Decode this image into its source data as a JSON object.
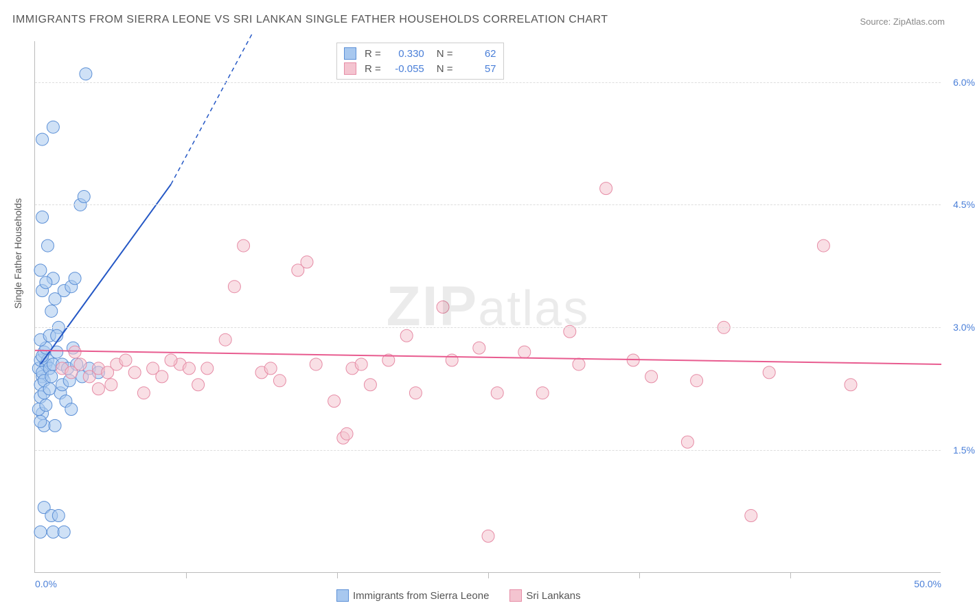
{
  "title": "IMMIGRANTS FROM SIERRA LEONE VS SRI LANKAN SINGLE FATHER HOUSEHOLDS CORRELATION CHART",
  "source_label": "Source: ZipAtlas.com",
  "ylabel": "Single Father Households",
  "watermark": "ZIPatlas",
  "chart": {
    "type": "scatter",
    "background_color": "#ffffff",
    "grid_color": "#dddddd",
    "axis_color": "#bbbbbb",
    "tick_color": "#4a7fd8",
    "label_fontsize": 14,
    "title_fontsize": 16,
    "xlim": [
      0,
      50
    ],
    "ylim": [
      0,
      6.5
    ],
    "x_ticks": [
      {
        "pos": 0.0,
        "label": "0.0%"
      },
      {
        "pos": 50.0,
        "label": "50.0%"
      }
    ],
    "x_minor_ticks": [
      8.33,
      16.67,
      25.0,
      33.33,
      41.67
    ],
    "y_ticks": [
      {
        "pos": 1.5,
        "label": "1.5%"
      },
      {
        "pos": 3.0,
        "label": "3.0%"
      },
      {
        "pos": 4.5,
        "label": "4.5%"
      },
      {
        "pos": 6.0,
        "label": "6.0%"
      }
    ],
    "marker_radius": 9,
    "marker_opacity": 0.55,
    "line_width": 2
  },
  "series": [
    {
      "name": "Immigrants from Sierra Leone",
      "color_fill": "#a8c8ef",
      "color_stroke": "#5b8fd6",
      "line_color": "#2457c5",
      "r_value": "0.330",
      "n_value": "62",
      "trend": {
        "x1": 0.3,
        "y1": 2.55,
        "x2": 7.5,
        "y2": 4.75,
        "dash_to_x": 12,
        "dash_to_y": 6.6
      },
      "points": [
        [
          0.2,
          2.5
        ],
        [
          0.3,
          2.6
        ],
        [
          0.4,
          2.4
        ],
        [
          0.5,
          2.7
        ],
        [
          0.3,
          2.3
        ],
        [
          0.6,
          2.55
        ],
        [
          0.4,
          2.45
        ],
        [
          0.5,
          2.35
        ],
        [
          0.7,
          2.6
        ],
        [
          0.3,
          2.15
        ],
        [
          0.8,
          2.5
        ],
        [
          0.4,
          2.65
        ],
        [
          0.6,
          2.75
        ],
        [
          0.9,
          2.4
        ],
        [
          0.5,
          2.2
        ],
        [
          1.0,
          2.55
        ],
        [
          0.3,
          2.85
        ],
        [
          1.2,
          2.7
        ],
        [
          0.4,
          1.95
        ],
        [
          1.5,
          2.55
        ],
        [
          0.8,
          2.9
        ],
        [
          0.5,
          1.8
        ],
        [
          1.8,
          2.5
        ],
        [
          0.9,
          3.2
        ],
        [
          1.1,
          3.35
        ],
        [
          1.3,
          3.0
        ],
        [
          0.4,
          3.45
        ],
        [
          1.6,
          3.45
        ],
        [
          1.0,
          3.6
        ],
        [
          0.6,
          3.55
        ],
        [
          2.0,
          3.5
        ],
        [
          0.3,
          3.7
        ],
        [
          2.2,
          3.6
        ],
        [
          0.7,
          4.0
        ],
        [
          2.5,
          4.5
        ],
        [
          0.4,
          4.35
        ],
        [
          2.7,
          4.6
        ],
        [
          0.4,
          5.3
        ],
        [
          1.0,
          5.45
        ],
        [
          2.8,
          6.1
        ],
        [
          0.2,
          2.0
        ],
        [
          0.3,
          1.85
        ],
        [
          1.4,
          2.2
        ],
        [
          1.7,
          2.1
        ],
        [
          2.0,
          2.0
        ],
        [
          1.1,
          1.8
        ],
        [
          0.5,
          0.8
        ],
        [
          0.9,
          0.7
        ],
        [
          1.3,
          0.7
        ],
        [
          0.3,
          0.5
        ],
        [
          1.0,
          0.5
        ],
        [
          1.6,
          0.5
        ],
        [
          2.3,
          2.55
        ],
        [
          2.6,
          2.4
        ],
        [
          3.0,
          2.5
        ],
        [
          3.5,
          2.45
        ],
        [
          1.2,
          2.9
        ],
        [
          0.8,
          2.25
        ],
        [
          1.5,
          2.3
        ],
        [
          0.6,
          2.05
        ],
        [
          2.1,
          2.75
        ],
        [
          1.9,
          2.35
        ]
      ]
    },
    {
      "name": "Sri Lankans",
      "color_fill": "#f4c4d0",
      "color_stroke": "#e68ba5",
      "line_color": "#e85b8f",
      "r_value": "-0.055",
      "n_value": "57",
      "trend": {
        "x1": 0,
        "y1": 2.72,
        "x2": 50,
        "y2": 2.55
      },
      "points": [
        [
          1.5,
          2.5
        ],
        [
          2.0,
          2.45
        ],
        [
          2.5,
          2.55
        ],
        [
          3.0,
          2.4
        ],
        [
          3.5,
          2.5
        ],
        [
          4.0,
          2.45
        ],
        [
          4.5,
          2.55
        ],
        [
          5.5,
          2.45
        ],
        [
          6.5,
          2.5
        ],
        [
          7.0,
          2.4
        ],
        [
          8.0,
          2.55
        ],
        [
          8.5,
          2.5
        ],
        [
          9.5,
          2.5
        ],
        [
          10.5,
          2.85
        ],
        [
          11.0,
          3.5
        ],
        [
          11.5,
          4.0
        ],
        [
          12.5,
          2.45
        ],
        [
          13.0,
          2.5
        ],
        [
          14.5,
          3.7
        ],
        [
          15.5,
          2.55
        ],
        [
          16.5,
          2.1
        ],
        [
          17.0,
          1.65
        ],
        [
          17.5,
          2.5
        ],
        [
          18.5,
          2.3
        ],
        [
          19.5,
          2.6
        ],
        [
          20.5,
          2.9
        ],
        [
          21.0,
          2.2
        ],
        [
          22.5,
          3.25
        ],
        [
          23.0,
          2.6
        ],
        [
          24.5,
          2.75
        ],
        [
          25.5,
          2.2
        ],
        [
          27.0,
          2.7
        ],
        [
          28.0,
          2.2
        ],
        [
          29.5,
          2.95
        ],
        [
          30.0,
          2.55
        ],
        [
          31.5,
          4.7
        ],
        [
          33.0,
          2.6
        ],
        [
          34.0,
          2.4
        ],
        [
          36.0,
          1.6
        ],
        [
          36.5,
          2.35
        ],
        [
          38.0,
          3.0
        ],
        [
          39.5,
          0.7
        ],
        [
          40.5,
          2.45
        ],
        [
          43.5,
          4.0
        ],
        [
          45.0,
          2.3
        ],
        [
          25.0,
          0.45
        ],
        [
          3.5,
          2.25
        ],
        [
          5.0,
          2.6
        ],
        [
          6.0,
          2.2
        ],
        [
          2.2,
          2.7
        ],
        [
          4.2,
          2.3
        ],
        [
          7.5,
          2.6
        ],
        [
          9.0,
          2.3
        ],
        [
          13.5,
          2.35
        ],
        [
          15.0,
          3.8
        ],
        [
          17.2,
          1.7
        ],
        [
          18.0,
          2.55
        ]
      ]
    }
  ],
  "legend_top": {
    "r_label": "R =",
    "n_label": "N ="
  },
  "legend_bottom": {
    "items": [
      "Immigrants from Sierra Leone",
      "Sri Lankans"
    ]
  }
}
